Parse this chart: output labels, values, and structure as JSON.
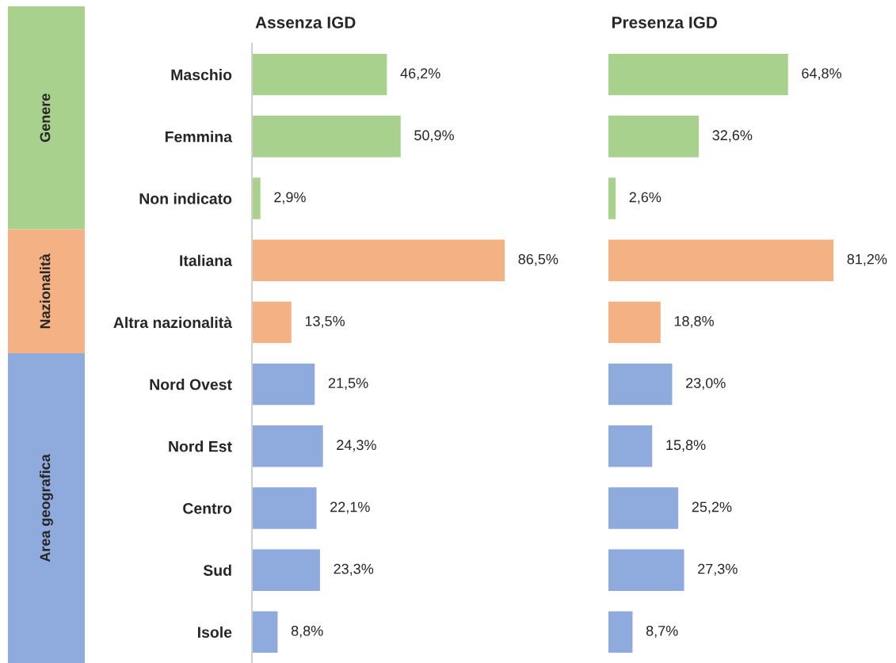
{
  "chart_data": [
    {
      "type": "bar",
      "orientation": "horizontal",
      "title": "Assenza IGD",
      "tick_labels": "y",
      "grid": false,
      "legend": false,
      "categories": [
        "Maschio",
        "Femmina",
        "Non indicato",
        "Italiana",
        "Altra nazionalità",
        "Nord Ovest",
        "Nord Est",
        "Centro",
        "Sud",
        "Isole"
      ],
      "values": [
        46.2,
        50.9,
        2.9,
        86.5,
        13.5,
        21.5,
        24.3,
        22.1,
        23.3,
        8.8
      ],
      "value_labels": [
        "46,2%",
        "50,9%",
        "2,9%",
        "86,5%",
        "13,5%",
        "21,5%",
        "24,3%",
        "22,1%",
        "23,3%",
        "8,8%"
      ],
      "colors": [
        "#a9d18e",
        "#a9d18e",
        "#a9d18e",
        "#f4b183",
        "#f4b183",
        "#8faadc",
        "#8faadc",
        "#8faadc",
        "#8faadc",
        "#8faadc"
      ],
      "annotations": [
        "Genere",
        "Nazionalità",
        "Area geografica"
      ]
    },
    {
      "type": "bar",
      "orientation": "horizontal",
      "title": "Presenza IGD",
      "tick_labels": false,
      "grid": false,
      "legend": false,
      "categories": [
        null,
        null,
        null,
        null,
        null,
        null,
        null,
        null,
        null,
        null
      ],
      "values": [
        64.8,
        32.6,
        2.6,
        81.2,
        18.8,
        23.0,
        15.8,
        25.2,
        27.3,
        8.7
      ],
      "value_labels": [
        "64,8%",
        "32,6%",
        "2,6%",
        "81,2%",
        "18,8%",
        "23,0%",
        "15,8%",
        "25,2%",
        "27,3%",
        "8,7%"
      ],
      "colors": [
        "#a9d18e",
        "#a9d18e",
        "#a9d18e",
        "#f4b183",
        "#f4b183",
        "#8faadc",
        "#8faadc",
        "#8faadc",
        "#8faadc",
        "#8faadc"
      ]
    }
  ]
}
